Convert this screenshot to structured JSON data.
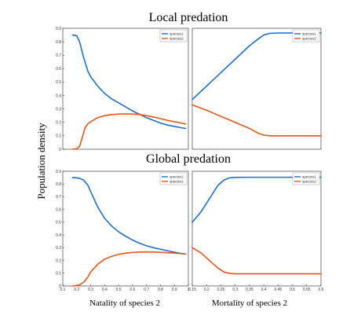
{
  "figure": {
    "title_top": "Local predation",
    "title_bottom": "Global predation",
    "ylabel": "Population density",
    "xlabel_left": "Natality of species 2",
    "xlabel_right": "Mortality of species 2"
  },
  "chart_data": [
    {
      "type": "line",
      "title": "Local predation",
      "xlabel": "",
      "ylabel": "Population density",
      "xlim": [
        0.1,
        1.0
      ],
      "ylim": [
        0,
        0.9
      ],
      "xticks": [],
      "yticks": [
        0,
        0.1,
        0.2,
        0.3,
        0.4,
        0.5,
        0.6,
        0.7,
        0.8,
        0.9
      ],
      "legend": "top-right",
      "series": [
        {
          "name": "species1",
          "color": "#1f6fc9",
          "x": [
            0.17,
            0.2,
            0.22,
            0.25,
            0.28,
            0.3,
            0.35,
            0.4,
            0.45,
            0.5,
            0.55,
            0.6,
            0.65,
            0.7,
            0.75,
            0.8,
            0.85,
            0.9,
            0.95,
            0.98
          ],
          "y": [
            0.85,
            0.845,
            0.8,
            0.68,
            0.58,
            0.54,
            0.47,
            0.415,
            0.375,
            0.345,
            0.315,
            0.285,
            0.26,
            0.235,
            0.215,
            0.195,
            0.18,
            0.17,
            0.16,
            0.155
          ]
        },
        {
          "name": "species2",
          "color": "#e0581b",
          "x": [
            0.17,
            0.2,
            0.22,
            0.24,
            0.26,
            0.28,
            0.3,
            0.35,
            0.4,
            0.45,
            0.5,
            0.55,
            0.6,
            0.65,
            0.7,
            0.75,
            0.8,
            0.85,
            0.9,
            0.95,
            0.98
          ],
          "y": [
            0,
            0.005,
            0.02,
            0.09,
            0.16,
            0.19,
            0.205,
            0.235,
            0.25,
            0.258,
            0.262,
            0.263,
            0.262,
            0.258,
            0.25,
            0.24,
            0.228,
            0.215,
            0.205,
            0.195,
            0.188
          ]
        }
      ]
    },
    {
      "type": "line",
      "title": "Local predation",
      "xlabel": "",
      "ylabel": "",
      "xlim": [
        0.15,
        0.6
      ],
      "ylim": [
        0,
        0.9
      ],
      "legend": "top-right",
      "series": [
        {
          "name": "species1",
          "color": "#1f6fc9",
          "x": [
            0.15,
            0.2,
            0.25,
            0.3,
            0.35,
            0.38,
            0.4,
            0.42,
            0.45,
            0.5,
            0.55,
            0.6
          ],
          "y": [
            0.37,
            0.47,
            0.57,
            0.67,
            0.77,
            0.82,
            0.85,
            0.862,
            0.865,
            0.865,
            0.865,
            0.865
          ]
        },
        {
          "name": "species2",
          "color": "#e0581b",
          "x": [
            0.15,
            0.2,
            0.25,
            0.3,
            0.35,
            0.38,
            0.4,
            0.42,
            0.45,
            0.5,
            0.55,
            0.6
          ],
          "y": [
            0.33,
            0.29,
            0.245,
            0.2,
            0.155,
            0.12,
            0.105,
            0.1,
            0.1,
            0.1,
            0.1,
            0.1
          ]
        }
      ]
    },
    {
      "type": "line",
      "title": "Global predation",
      "xlabel": "Natality of species 2",
      "ylabel": "Population density",
      "xlim": [
        0.1,
        1.0
      ],
      "ylim": [
        0,
        0.9
      ],
      "xticks": [
        0.1,
        0.2,
        0.3,
        0.4,
        0.5,
        0.6,
        0.7,
        0.8,
        0.9,
        1
      ],
      "yticks": [
        0,
        0.1,
        0.2,
        0.3,
        0.4,
        0.5,
        0.6,
        0.7,
        0.8,
        0.9
      ],
      "legend": "top-right",
      "series": [
        {
          "name": "species1",
          "color": "#1f6fc9",
          "x": [
            0.17,
            0.2,
            0.22,
            0.25,
            0.28,
            0.3,
            0.35,
            0.4,
            0.45,
            0.5,
            0.55,
            0.6,
            0.65,
            0.7,
            0.75,
            0.8,
            0.85,
            0.9,
            0.95,
            0.98
          ],
          "y": [
            0.85,
            0.848,
            0.845,
            0.83,
            0.79,
            0.74,
            0.62,
            0.53,
            0.47,
            0.425,
            0.39,
            0.36,
            0.335,
            0.315,
            0.3,
            0.288,
            0.276,
            0.265,
            0.255,
            0.25
          ]
        },
        {
          "name": "species2",
          "color": "#e0581b",
          "x": [
            0.17,
            0.2,
            0.22,
            0.25,
            0.28,
            0.3,
            0.35,
            0.4,
            0.45,
            0.5,
            0.55,
            0.6,
            0.65,
            0.7,
            0.75,
            0.8,
            0.85,
            0.9,
            0.95,
            0.98
          ],
          "y": [
            0,
            0.003,
            0.008,
            0.03,
            0.07,
            0.11,
            0.17,
            0.21,
            0.232,
            0.248,
            0.257,
            0.263,
            0.266,
            0.267,
            0.266,
            0.264,
            0.261,
            0.258,
            0.254,
            0.25
          ]
        }
      ]
    },
    {
      "type": "line",
      "title": "Global predation",
      "xlabel": "Mortality of species 2",
      "ylabel": "",
      "xlim": [
        0.15,
        0.6
      ],
      "ylim": [
        0,
        0.9
      ],
      "xticks": [
        0.15,
        0.2,
        0.25,
        0.3,
        0.35,
        0.4,
        0.45,
        0.5,
        0.55,
        0.6
      ],
      "legend": "top-right",
      "series": [
        {
          "name": "species1",
          "color": "#1f6fc9",
          "x": [
            0.15,
            0.18,
            0.2,
            0.22,
            0.24,
            0.26,
            0.28,
            0.3,
            0.35,
            0.4,
            0.45,
            0.5,
            0.55,
            0.6
          ],
          "y": [
            0.5,
            0.58,
            0.65,
            0.72,
            0.79,
            0.83,
            0.848,
            0.852,
            0.853,
            0.853,
            0.853,
            0.853,
            0.853,
            0.853
          ]
        },
        {
          "name": "species2",
          "color": "#e0581b",
          "x": [
            0.15,
            0.18,
            0.2,
            0.22,
            0.24,
            0.26,
            0.28,
            0.3,
            0.35,
            0.4,
            0.45,
            0.5,
            0.55,
            0.6
          ],
          "y": [
            0.3,
            0.26,
            0.22,
            0.18,
            0.14,
            0.11,
            0.098,
            0.095,
            0.095,
            0.095,
            0.095,
            0.095,
            0.095,
            0.095
          ]
        }
      ]
    }
  ]
}
